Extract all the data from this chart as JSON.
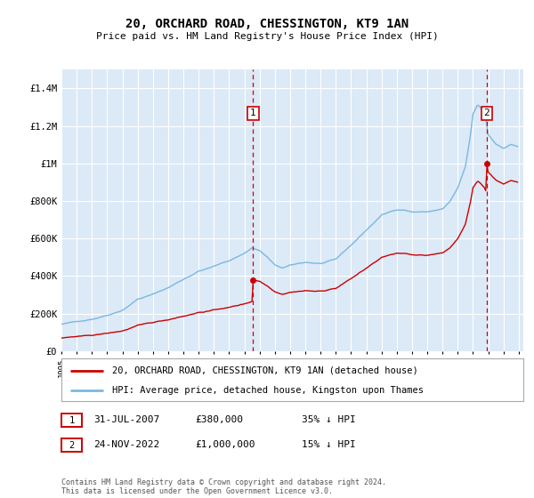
{
  "title": "20, ORCHARD ROAD, CHESSINGTON, KT9 1AN",
  "subtitle": "Price paid vs. HM Land Registry's House Price Index (HPI)",
  "ylim": [
    0,
    1500000
  ],
  "xlim_start": 1995.0,
  "xlim_end": 2025.3,
  "yticks": [
    0,
    200000,
    400000,
    600000,
    800000,
    1000000,
    1200000,
    1400000
  ],
  "ytick_labels": [
    "£0",
    "£200K",
    "£400K",
    "£600K",
    "£800K",
    "£1M",
    "£1.2M",
    "£1.4M"
  ],
  "xticks": [
    1995,
    1996,
    1997,
    1998,
    1999,
    2000,
    2001,
    2002,
    2003,
    2004,
    2005,
    2006,
    2007,
    2008,
    2009,
    2010,
    2011,
    2012,
    2013,
    2014,
    2015,
    2016,
    2017,
    2018,
    2019,
    2020,
    2021,
    2022,
    2023,
    2024,
    2025
  ],
  "plot_bg_color": "#dce9f7",
  "grid_color": "#ffffff",
  "red_line_color": "#cc0000",
  "blue_line_color": "#7ab8e0",
  "vline_color": "#cc0000",
  "marker1_date": 2007.58,
  "marker2_date": 2022.9,
  "marker1_price": 380000,
  "marker2_price": 1000000,
  "legend_label1": "20, ORCHARD ROAD, CHESSINGTON, KT9 1AN (detached house)",
  "legend_label2": "HPI: Average price, detached house, Kingston upon Thames",
  "table_row1": [
    "1",
    "31-JUL-2007",
    "£380,000",
    "35% ↓ HPI"
  ],
  "table_row2": [
    "2",
    "24-NOV-2022",
    "£1,000,000",
    "15% ↓ HPI"
  ],
  "footnote": "Contains HM Land Registry data © Crown copyright and database right 2024.\nThis data is licensed under the Open Government Licence v3.0."
}
